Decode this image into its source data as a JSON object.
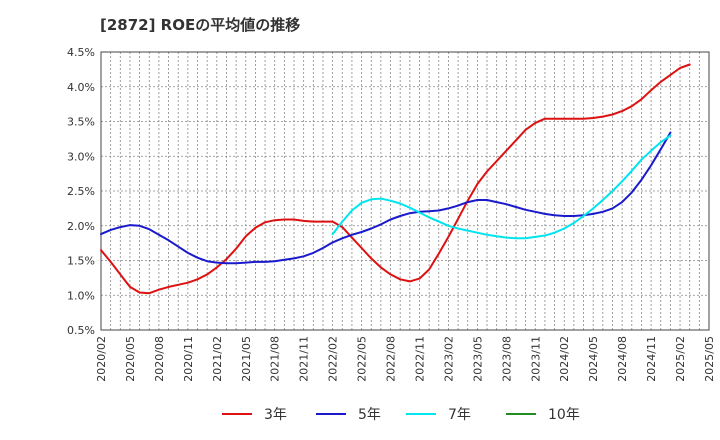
{
  "chart_data": {
    "type": "line",
    "title": "[2872]  ROEの平均値の推移",
    "xlabel": "",
    "ylabel": "",
    "ylim": [
      0.5,
      4.5
    ],
    "yticks": [
      "0.5%",
      "1.0%",
      "1.5%",
      "2.0%",
      "2.5%",
      "3.0%",
      "3.5%",
      "4.0%",
      "4.5%"
    ],
    "ytick_values": [
      0.5,
      1.0,
      1.5,
      2.0,
      2.5,
      3.0,
      3.5,
      4.0,
      4.5
    ],
    "xticks": [
      "2020/02",
      "2020/05",
      "2020/08",
      "2020/11",
      "2021/02",
      "2021/05",
      "2021/08",
      "2021/11",
      "2022/02",
      "2022/05",
      "2022/08",
      "2022/11",
      "2023/02",
      "2023/05",
      "2023/08",
      "2023/11",
      "2024/02",
      "2024/05",
      "2024/08",
      "2024/11",
      "2025/02",
      "2025/05"
    ],
    "x_unit": "month index from 2020/02",
    "x_range": [
      0,
      63
    ],
    "grid": true,
    "legend_position": "bottom",
    "series": [
      {
        "name": "3年",
        "color": "#dd1111",
        "points": [
          [
            0,
            1.65
          ],
          [
            1,
            1.48
          ],
          [
            2,
            1.3
          ],
          [
            3,
            1.12
          ],
          [
            4,
            1.04
          ],
          [
            5,
            1.03
          ],
          [
            6,
            1.08
          ],
          [
            7,
            1.12
          ],
          [
            8,
            1.15
          ],
          [
            9,
            1.18
          ],
          [
            10,
            1.23
          ],
          [
            11,
            1.3
          ],
          [
            12,
            1.4
          ],
          [
            13,
            1.52
          ],
          [
            14,
            1.67
          ],
          [
            15,
            1.85
          ],
          [
            16,
            1.97
          ],
          [
            17,
            2.05
          ],
          [
            18,
            2.08
          ],
          [
            19,
            2.09
          ],
          [
            20,
            2.09
          ],
          [
            21,
            2.07
          ],
          [
            22,
            2.06
          ],
          [
            23,
            2.06
          ],
          [
            24,
            2.06
          ],
          [
            25,
            1.98
          ],
          [
            26,
            1.83
          ],
          [
            27,
            1.68
          ],
          [
            28,
            1.53
          ],
          [
            29,
            1.4
          ],
          [
            30,
            1.3
          ],
          [
            31,
            1.23
          ],
          [
            32,
            1.2
          ],
          [
            33,
            1.24
          ],
          [
            34,
            1.37
          ],
          [
            35,
            1.6
          ],
          [
            36,
            1.84
          ],
          [
            37,
            2.1
          ],
          [
            38,
            2.36
          ],
          [
            39,
            2.6
          ],
          [
            40,
            2.78
          ],
          [
            41,
            2.93
          ],
          [
            42,
            3.08
          ],
          [
            43,
            3.23
          ],
          [
            44,
            3.38
          ],
          [
            45,
            3.48
          ],
          [
            46,
            3.54
          ],
          [
            47,
            3.54
          ],
          [
            48,
            3.54
          ],
          [
            49,
            3.54
          ],
          [
            50,
            3.54
          ],
          [
            51,
            3.55
          ],
          [
            52,
            3.57
          ],
          [
            53,
            3.6
          ],
          [
            54,
            3.65
          ],
          [
            55,
            3.72
          ],
          [
            56,
            3.82
          ],
          [
            57,
            3.95
          ],
          [
            58,
            4.07
          ],
          [
            59,
            4.17
          ],
          [
            60,
            4.27
          ],
          [
            61,
            4.32
          ]
        ]
      },
      {
        "name": "5年",
        "color": "#1a1acc",
        "points": [
          [
            0,
            1.88
          ],
          [
            1,
            1.94
          ],
          [
            2,
            1.98
          ],
          [
            3,
            2.01
          ],
          [
            4,
            2.0
          ],
          [
            5,
            1.95
          ],
          [
            6,
            1.87
          ],
          [
            7,
            1.79
          ],
          [
            8,
            1.7
          ],
          [
            9,
            1.61
          ],
          [
            10,
            1.54
          ],
          [
            11,
            1.49
          ],
          [
            12,
            1.47
          ],
          [
            13,
            1.46
          ],
          [
            14,
            1.46
          ],
          [
            15,
            1.47
          ],
          [
            16,
            1.48
          ],
          [
            17,
            1.48
          ],
          [
            18,
            1.49
          ],
          [
            19,
            1.51
          ],
          [
            20,
            1.53
          ],
          [
            21,
            1.56
          ],
          [
            22,
            1.61
          ],
          [
            23,
            1.68
          ],
          [
            24,
            1.76
          ],
          [
            25,
            1.82
          ],
          [
            26,
            1.87
          ],
          [
            27,
            1.91
          ],
          [
            28,
            1.96
          ],
          [
            29,
            2.02
          ],
          [
            30,
            2.09
          ],
          [
            31,
            2.14
          ],
          [
            32,
            2.18
          ],
          [
            33,
            2.2
          ],
          [
            34,
            2.21
          ],
          [
            35,
            2.22
          ],
          [
            36,
            2.25
          ],
          [
            37,
            2.29
          ],
          [
            38,
            2.34
          ],
          [
            39,
            2.37
          ],
          [
            40,
            2.37
          ],
          [
            41,
            2.34
          ],
          [
            42,
            2.31
          ],
          [
            43,
            2.27
          ],
          [
            44,
            2.23
          ],
          [
            45,
            2.2
          ],
          [
            46,
            2.17
          ],
          [
            47,
            2.15
          ],
          [
            48,
            2.14
          ],
          [
            49,
            2.14
          ],
          [
            50,
            2.15
          ],
          [
            51,
            2.17
          ],
          [
            52,
            2.2
          ],
          [
            53,
            2.25
          ],
          [
            54,
            2.34
          ],
          [
            55,
            2.48
          ],
          [
            56,
            2.66
          ],
          [
            57,
            2.87
          ],
          [
            58,
            3.1
          ],
          [
            59,
            3.34
          ]
        ]
      },
      {
        "name": "7年",
        "color": "#00e5ee",
        "points": [
          [
            24,
            1.88
          ],
          [
            25,
            2.06
          ],
          [
            26,
            2.22
          ],
          [
            27,
            2.33
          ],
          [
            28,
            2.38
          ],
          [
            29,
            2.39
          ],
          [
            30,
            2.36
          ],
          [
            31,
            2.32
          ],
          [
            32,
            2.26
          ],
          [
            33,
            2.19
          ],
          [
            34,
            2.12
          ],
          [
            35,
            2.06
          ],
          [
            36,
            2.0
          ],
          [
            37,
            1.96
          ],
          [
            38,
            1.93
          ],
          [
            39,
            1.9
          ],
          [
            40,
            1.87
          ],
          [
            41,
            1.85
          ],
          [
            42,
            1.83
          ],
          [
            43,
            1.82
          ],
          [
            44,
            1.82
          ],
          [
            45,
            1.84
          ],
          [
            46,
            1.86
          ],
          [
            47,
            1.9
          ],
          [
            48,
            1.96
          ],
          [
            49,
            2.04
          ],
          [
            50,
            2.14
          ],
          [
            51,
            2.25
          ],
          [
            52,
            2.37
          ],
          [
            53,
            2.5
          ],
          [
            54,
            2.64
          ],
          [
            55,
            2.79
          ],
          [
            56,
            2.95
          ],
          [
            57,
            3.08
          ],
          [
            58,
            3.2
          ],
          [
            59,
            3.3
          ]
        ]
      },
      {
        "name": "10年",
        "color": "#228b22",
        "points": []
      }
    ]
  }
}
